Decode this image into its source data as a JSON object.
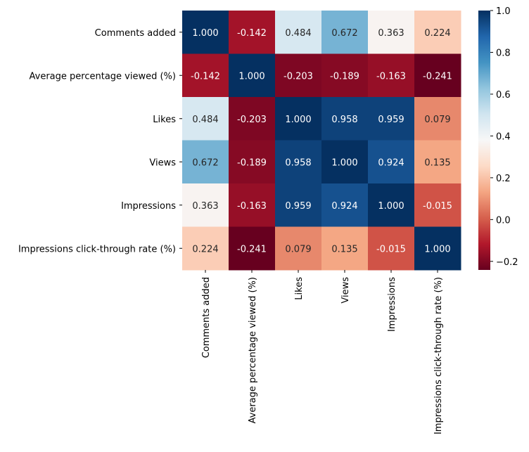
{
  "chart_data": {
    "type": "heatmap",
    "title": "",
    "xlabel": "",
    "ylabel": "",
    "labels": [
      "Comments added",
      "Average percentage viewed (%)",
      "Likes",
      "Views",
      "Impressions",
      "Impressions click-through rate (%)"
    ],
    "matrix": [
      [
        1.0,
        -0.142,
        0.484,
        0.672,
        0.363,
        0.224
      ],
      [
        -0.142,
        1.0,
        -0.203,
        -0.189,
        -0.163,
        -0.241
      ],
      [
        0.484,
        -0.203,
        1.0,
        0.958,
        0.959,
        0.079
      ],
      [
        0.672,
        -0.189,
        0.958,
        1.0,
        0.924,
        0.135
      ],
      [
        0.363,
        -0.163,
        0.959,
        0.924,
        1.0,
        -0.015
      ],
      [
        0.224,
        -0.241,
        0.079,
        0.135,
        -0.015,
        1.0
      ]
    ],
    "value_labels": [
      [
        "1.000",
        "-0.142",
        "0.484",
        "0.672",
        "0.363",
        "0.224"
      ],
      [
        "-0.142",
        "1.000",
        "-0.203",
        "-0.189",
        "-0.163",
        "-0.241"
      ],
      [
        "0.484",
        "-0.203",
        "1.000",
        "0.958",
        "0.959",
        "0.079"
      ],
      [
        "0.672",
        "-0.189",
        "0.958",
        "1.000",
        "0.924",
        "0.135"
      ],
      [
        "0.363",
        "-0.163",
        "0.959",
        "0.924",
        "1.000",
        "-0.015"
      ],
      [
        "0.224",
        "-0.241",
        "0.079",
        "0.135",
        "-0.015",
        "1.000"
      ]
    ],
    "colorbar": {
      "vmin": -0.241,
      "vmax": 1.0,
      "ticks": [
        -0.2,
        0.0,
        0.2,
        0.4,
        0.6,
        0.8,
        1.0
      ],
      "tick_labels": [
        "−0.2",
        "0.0",
        "0.2",
        "0.4",
        "0.6",
        "0.8",
        "1.0"
      ],
      "colormap": "RdBu",
      "colormap_stops": [
        "#67001f",
        "#b2182b",
        "#d6604d",
        "#f4a582",
        "#fddbc7",
        "#f7f7f7",
        "#d1e5f0",
        "#92c5de",
        "#4393c3",
        "#2166ac",
        "#053061"
      ]
    },
    "legend": "right colorbar"
  }
}
